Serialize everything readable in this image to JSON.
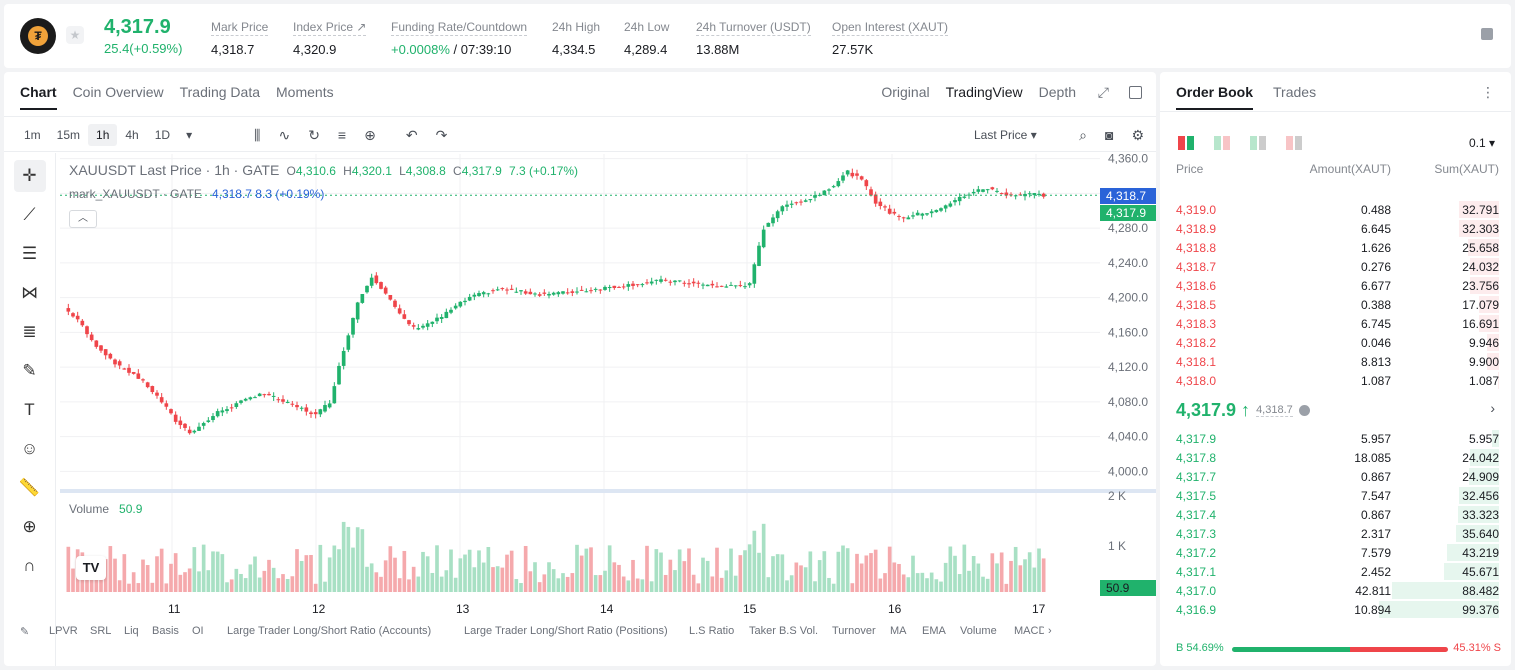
{
  "ticker": {
    "price": "4,317.9",
    "change": "25.4(+0.59%)",
    "stats": [
      {
        "label": "Mark Price",
        "value": "4,318.7"
      },
      {
        "label": "Index Price ↗",
        "value": "4,320.9"
      },
      {
        "label": "Funding Rate/Countdown",
        "value_green": "+0.0008%",
        "value": " / 07:39:10"
      },
      {
        "label": "24h High",
        "value": "4,334.5"
      },
      {
        "label": "24h Low",
        "value": "4,289.4"
      },
      {
        "label": "24h Turnover (USDT)",
        "value": "13.88M"
      },
      {
        "label": "Open Interest (XAUT)",
        "value": "27.57K"
      }
    ]
  },
  "chart_panel": {
    "tabs": [
      "Chart",
      "Coin Overview",
      "Trading Data",
      "Moments"
    ],
    "view_tabs": [
      "Original",
      "TradingView",
      "Depth"
    ],
    "timeframes": [
      "1m",
      "15m",
      "1h",
      "4h",
      "1D"
    ],
    "price_type": "Last Price ▾",
    "legend_title": "XAUUSDT Last Price · 1h · GATE",
    "legend_ohlc": {
      "o": "4,310.6",
      "h": "4,320.1",
      "l": "4,308.8",
      "c": "4,317.9",
      "chg": "7.3 (+0.17%)"
    },
    "legend_mark": {
      "name": "mark_XAUUSDT · GATE",
      "value": "4,318.7  8.3 (+0.19%)"
    },
    "volume_label": "Volume",
    "volume_value": "50.9",
    "y_ticks": [
      "4,360.0",
      "4,320.0",
      "4,280.0",
      "4,240.0",
      "4,200.0",
      "4,160.0",
      "4,120.0",
      "4,080.0",
      "4,040.0",
      "4,000.0"
    ],
    "vol_ticks": [
      "2 K",
      "1 K"
    ],
    "tag_mark": "4,318.7",
    "tag_last": "4,317.9",
    "tag_vol": "50.9",
    "x_ticks": [
      "11",
      "12",
      "13",
      "14",
      "15",
      "16",
      "17"
    ],
    "indicators": [
      "LPVR",
      "SRL",
      "Liq",
      "Basis",
      "OI",
      "Large Trader Long/Short Ratio (Accounts)",
      "Large Trader Long/Short Ratio (Positions)",
      "L.S Ratio",
      "Taker B.S Vol.",
      "Turnover",
      "MA",
      "EMA",
      "Volume",
      "MACD"
    ],
    "tv_logo": "TV"
  },
  "chart_data": {
    "type": "candlestick",
    "symbol": "XAUUSDT",
    "interval": "1h",
    "ylim": [
      3990,
      4370
    ],
    "x_labels": [
      "11",
      "12",
      "13",
      "14",
      "15",
      "16",
      "17"
    ],
    "close_path": [
      4188,
      4175,
      4150,
      4135,
      4120,
      4112,
      4098,
      4080,
      4058,
      4045,
      4055,
      4068,
      4075,
      4082,
      4090,
      4085,
      4078,
      4072,
      4065,
      4080,
      4140,
      4195,
      4225,
      4205,
      4180,
      4165,
      4170,
      4178,
      4190,
      4200,
      4205,
      4210,
      4208,
      4206,
      4204,
      4205,
      4206,
      4208,
      4210,
      4212,
      4214,
      4216,
      4218,
      4220,
      4218,
      4216,
      4214,
      4213,
      4214,
      4215,
      4280,
      4300,
      4310,
      4312,
      4320,
      4330,
      4345,
      4335,
      4310,
      4298,
      4292,
      4296,
      4300,
      4305,
      4315,
      4322,
      4326,
      4320,
      4318,
      4320,
      4317.9
    ]
  },
  "order_book": {
    "tabs": [
      "Order Book",
      "Trades"
    ],
    "precision": "0.1 ▾",
    "headers": [
      "Price",
      "Amount(XAUT)",
      "Sum(XAUT)"
    ],
    "asks": [
      [
        "4,319.0",
        "0.488",
        "32.791",
        0.33
      ],
      [
        "4,318.9",
        "6.645",
        "32.303",
        0.33
      ],
      [
        "4,318.8",
        "1.626",
        "25.658",
        0.26
      ],
      [
        "4,318.7",
        "0.276",
        "24.032",
        0.24
      ],
      [
        "4,318.6",
        "6.677",
        "23.756",
        0.24
      ],
      [
        "4,318.5",
        "0.388",
        "17.079",
        0.17
      ],
      [
        "4,318.3",
        "6.745",
        "16.691",
        0.17
      ],
      [
        "4,318.2",
        "0.046",
        "9.946",
        0.1
      ],
      [
        "4,318.1",
        "8.813",
        "9.900",
        0.1
      ],
      [
        "4,318.0",
        "1.087",
        "1.087",
        0.01
      ]
    ],
    "mid_price": "4,317.9 ↑",
    "mid_mark": "4,318.7",
    "bids": [
      [
        "4,317.9",
        "5.957",
        "5.957",
        0.06
      ],
      [
        "4,317.8",
        "18.085",
        "24.042",
        0.24
      ],
      [
        "4,317.7",
        "0.867",
        "24.909",
        0.25
      ],
      [
        "4,317.5",
        "7.547",
        "32.456",
        0.33
      ],
      [
        "4,317.4",
        "0.867",
        "33.323",
        0.34
      ],
      [
        "4,317.3",
        "2.317",
        "35.640",
        0.36
      ],
      [
        "4,317.2",
        "7.579",
        "43.219",
        0.43
      ],
      [
        "4,317.1",
        "2.452",
        "45.671",
        0.46
      ],
      [
        "4,317.0",
        "42.811",
        "88.482",
        0.89
      ],
      [
        "4,316.9",
        "10.894",
        "99.376",
        1.0
      ]
    ],
    "buy_ratio": "B 54.69%",
    "sell_ratio": "45.31% S",
    "buy_fraction": 0.5469
  },
  "colors": {
    "up": "#20b26c",
    "down": "#ef454a",
    "accent": "#2a63d8"
  }
}
